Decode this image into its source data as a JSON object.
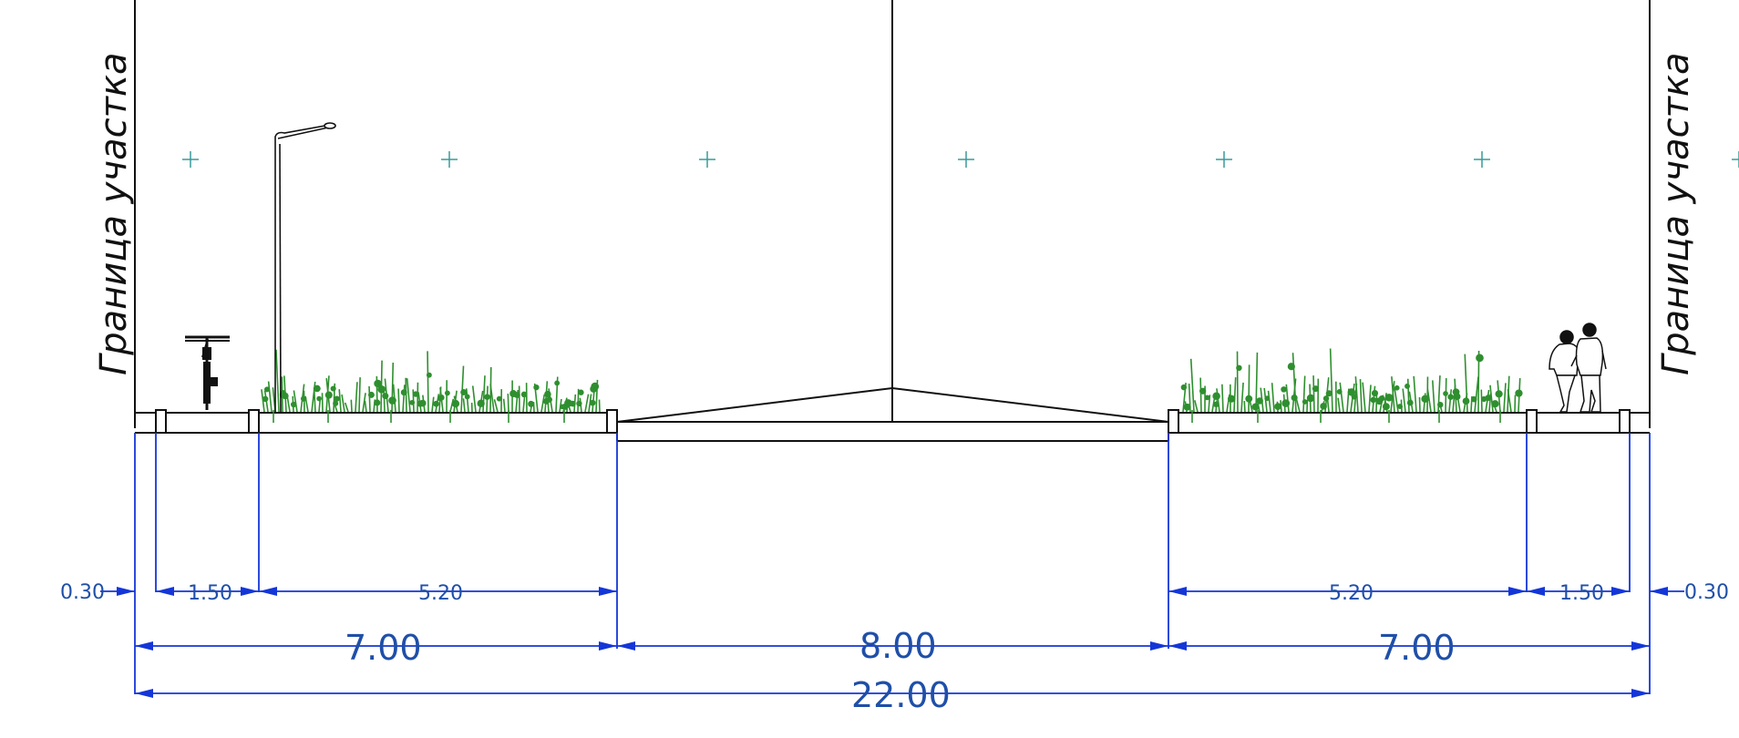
{
  "drawing": {
    "boundary_label_left": "Граница участка",
    "boundary_label_right": "Граница участка"
  },
  "dimensions": {
    "row1": [
      "0.30",
      "1.50",
      "5.20",
      "5.20",
      "1.50",
      "0.30"
    ],
    "row2": [
      "7.00",
      "8.00",
      "7.00"
    ],
    "row3": "22.00"
  },
  "colors": {
    "outline": "#111111",
    "dimension": "#1436d8",
    "dimension_text": "#1f4fa8",
    "vegetation": "#2f8f2f",
    "crosshair": "#3a9a9a"
  }
}
